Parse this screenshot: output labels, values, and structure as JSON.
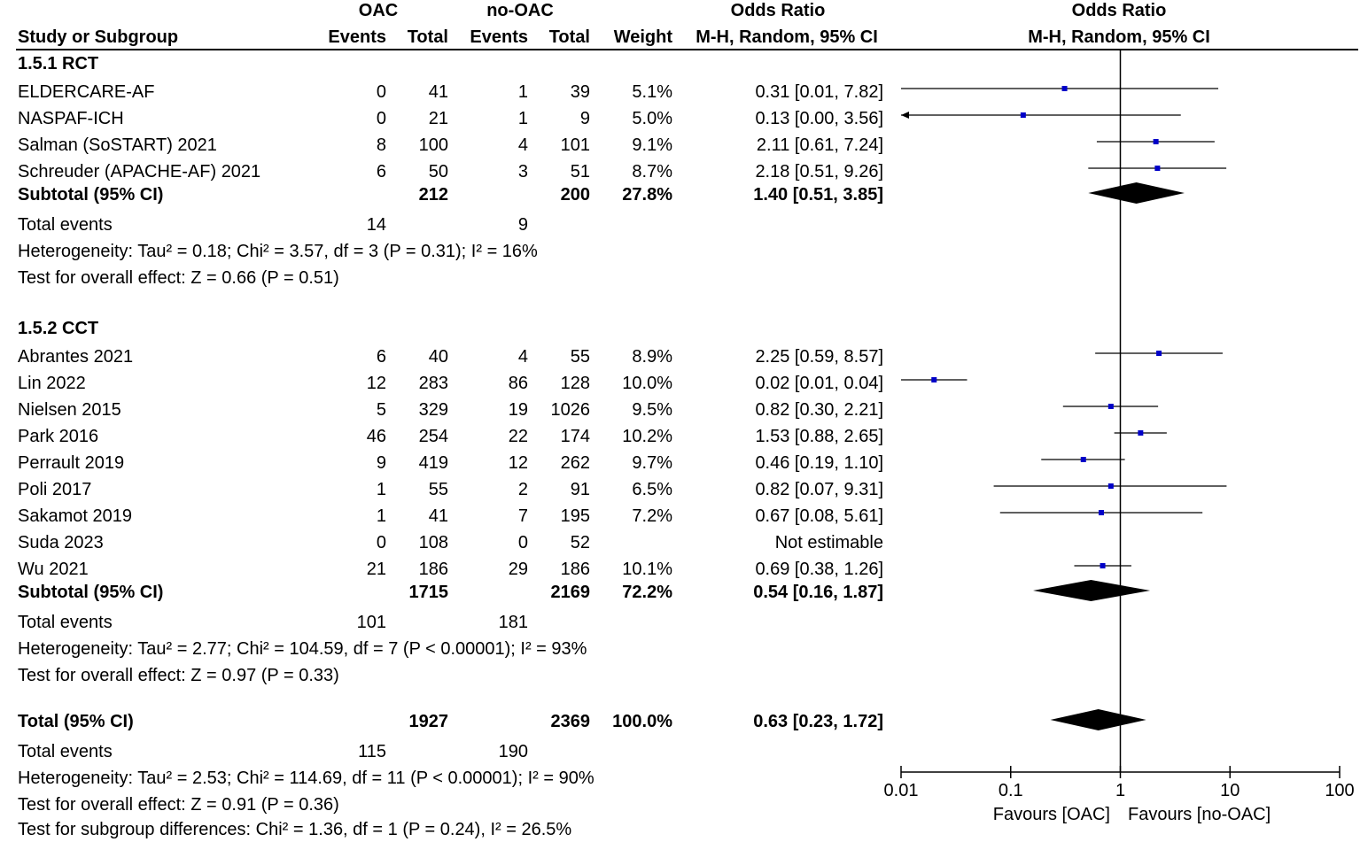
{
  "headers": {
    "oac_group": "OAC",
    "nooac_group": "no-OAC",
    "or_group": "Odds Ratio",
    "plot_group": "Odds Ratio",
    "study_col": "Study or Subgroup",
    "oac_events": "Events",
    "oac_total": "Total",
    "nooac_events": "Events",
    "nooac_total": "Total",
    "weight_col": "Weight",
    "or_method": "M-H, Random, 95% CI",
    "plot_method": "M-H, Random, 95% CI"
  },
  "subgroups": [
    {
      "title": "1.5.1 RCT",
      "studies": [
        {
          "name": "ELDERCARE-AF",
          "oac_events": "0",
          "oac_total": "41",
          "nooac_events": "1",
          "nooac_total": "39",
          "weight": "5.1%",
          "or_text": "0.31 [0.01, 7.82]"
        },
        {
          "name": "NASPAF-ICH",
          "oac_events": "0",
          "oac_total": "21",
          "nooac_events": "1",
          "nooac_total": "9",
          "weight": "5.0%",
          "or_text": "0.13 [0.00, 3.56]"
        },
        {
          "name": "Salman (SoSTART) 2021",
          "oac_events": "8",
          "oac_total": "100",
          "nooac_events": "4",
          "nooac_total": "101",
          "weight": "9.1%",
          "or_text": "2.11 [0.61, 7.24]"
        },
        {
          "name": "Schreuder (APACHE-AF) 2021",
          "oac_events": "6",
          "oac_total": "50",
          "nooac_events": "3",
          "nooac_total": "51",
          "weight": "8.7%",
          "or_text": "2.18 [0.51, 9.26]"
        }
      ],
      "subtotal": {
        "label": "Subtotal (95% CI)",
        "oac_total": "212",
        "nooac_total": "200",
        "weight": "27.8%",
        "or_text": "1.40 [0.51, 3.85]"
      },
      "events": {
        "label": "Total events",
        "oac": "14",
        "nooac": "9"
      },
      "heterogeneity": "Heterogeneity: Tau² = 0.18; Chi² = 3.57, df = 3 (P = 0.31); I² = 16%",
      "overall_effect": "Test for overall effect: Z = 0.66 (P = 0.51)"
    },
    {
      "title": "1.5.2 CCT",
      "studies": [
        {
          "name": "Abrantes 2021",
          "oac_events": "6",
          "oac_total": "40",
          "nooac_events": "4",
          "nooac_total": "55",
          "weight": "8.9%",
          "or_text": "2.25 [0.59, 8.57]"
        },
        {
          "name": "Lin 2022",
          "oac_events": "12",
          "oac_total": "283",
          "nooac_events": "86",
          "nooac_total": "128",
          "weight": "10.0%",
          "or_text": "0.02 [0.01, 0.04]"
        },
        {
          "name": "Nielsen 2015",
          "oac_events": "5",
          "oac_total": "329",
          "nooac_events": "19",
          "nooac_total": "1026",
          "weight": "9.5%",
          "or_text": "0.82 [0.30, 2.21]"
        },
        {
          "name": "Park 2016",
          "oac_events": "46",
          "oac_total": "254",
          "nooac_events": "22",
          "nooac_total": "174",
          "weight": "10.2%",
          "or_text": "1.53 [0.88, 2.65]"
        },
        {
          "name": "Perrault 2019",
          "oac_events": "9",
          "oac_total": "419",
          "nooac_events": "12",
          "nooac_total": "262",
          "weight": "9.7%",
          "or_text": "0.46 [0.19, 1.10]"
        },
        {
          "name": "Poli 2017",
          "oac_events": "1",
          "oac_total": "55",
          "nooac_events": "2",
          "nooac_total": "91",
          "weight": "6.5%",
          "or_text": "0.82 [0.07, 9.31]"
        },
        {
          "name": "Sakamot 2019",
          "oac_events": "1",
          "oac_total": "41",
          "nooac_events": "7",
          "nooac_total": "195",
          "weight": "7.2%",
          "or_text": "0.67 [0.08, 5.61]"
        },
        {
          "name": "Suda 2023",
          "oac_events": "0",
          "oac_total": "108",
          "nooac_events": "0",
          "nooac_total": "52",
          "weight": "",
          "or_text": "Not estimable"
        },
        {
          "name": "Wu 2021",
          "oac_events": "21",
          "oac_total": "186",
          "nooac_events": "29",
          "nooac_total": "186",
          "weight": "10.1%",
          "or_text": "0.69 [0.38, 1.26]"
        }
      ],
      "subtotal": {
        "label": "Subtotal (95% CI)",
        "oac_total": "1715",
        "nooac_total": "2169",
        "weight": "72.2%",
        "or_text": "0.54 [0.16, 1.87]"
      },
      "events": {
        "label": "Total events",
        "oac": "101",
        "nooac": "181"
      },
      "heterogeneity": "Heterogeneity: Tau² = 2.77; Chi² = 104.59, df = 7 (P < 0.00001); I² = 93%",
      "overall_effect": "Test for overall effect: Z = 0.97 (P = 0.33)"
    }
  ],
  "total": {
    "label": "Total (95% CI)",
    "oac_total": "1927",
    "nooac_total": "2369",
    "weight": "100.0%",
    "or_text": "0.63 [0.23, 1.72]",
    "events": {
      "label": "Total events",
      "oac": "115",
      "nooac": "190"
    },
    "heterogeneity": "Heterogeneity: Tau² = 2.53; Chi² = 114.69, df = 11 (P < 0.00001); I² = 90%",
    "overall_effect": "Test for overall effect: Z = 0.91 (P = 0.36)",
    "subgroup_diff": "Test for subgroup differences: Chi² = 1.36, df = 1 (P = 0.24), I² = 26.5%"
  },
  "chart_data": {
    "type": "forest",
    "scale": "log",
    "xlim": [
      0.01,
      100
    ],
    "reference_line": 1,
    "ticks": [
      0.01,
      0.1,
      1,
      10,
      100
    ],
    "tick_labels": [
      "0.01",
      "0.1",
      "1",
      "10",
      "100"
    ],
    "left_label": "Favours [OAC]",
    "right_label": "Favours [no-OAC]",
    "marker_color": "#0000c8",
    "studies": [
      {
        "name": "ELDERCARE-AF",
        "or": 0.31,
        "lo": 0.01,
        "hi": 7.82
      },
      {
        "name": "NASPAF-ICH",
        "or": 0.13,
        "lo": 0.0,
        "hi": 3.56
      },
      {
        "name": "Salman (SoSTART) 2021",
        "or": 2.11,
        "lo": 0.61,
        "hi": 7.24
      },
      {
        "name": "Schreuder (APACHE-AF) 2021",
        "or": 2.18,
        "lo": 0.51,
        "hi": 9.26
      },
      {
        "name": "Abrantes 2021",
        "or": 2.25,
        "lo": 0.59,
        "hi": 8.57
      },
      {
        "name": "Lin 2022",
        "or": 0.02,
        "lo": 0.01,
        "hi": 0.04
      },
      {
        "name": "Nielsen 2015",
        "or": 0.82,
        "lo": 0.3,
        "hi": 2.21
      },
      {
        "name": "Park 2016",
        "or": 1.53,
        "lo": 0.88,
        "hi": 2.65
      },
      {
        "name": "Perrault 2019",
        "or": 0.46,
        "lo": 0.19,
        "hi": 1.1
      },
      {
        "name": "Poli 2017",
        "or": 0.82,
        "lo": 0.07,
        "hi": 9.31
      },
      {
        "name": "Sakamot 2019",
        "or": 0.67,
        "lo": 0.08,
        "hi": 5.61
      },
      {
        "name": "Suda 2023",
        "or": null,
        "lo": null,
        "hi": null
      },
      {
        "name": "Wu 2021",
        "or": 0.69,
        "lo": 0.38,
        "hi": 1.26
      }
    ],
    "summaries": [
      {
        "name": "Subtotal 1.5.1 RCT",
        "or": 1.4,
        "lo": 0.51,
        "hi": 3.85
      },
      {
        "name": "Subtotal 1.5.2 CCT",
        "or": 0.54,
        "lo": 0.16,
        "hi": 1.87
      },
      {
        "name": "Total",
        "or": 0.63,
        "lo": 0.23,
        "hi": 1.72
      }
    ]
  }
}
